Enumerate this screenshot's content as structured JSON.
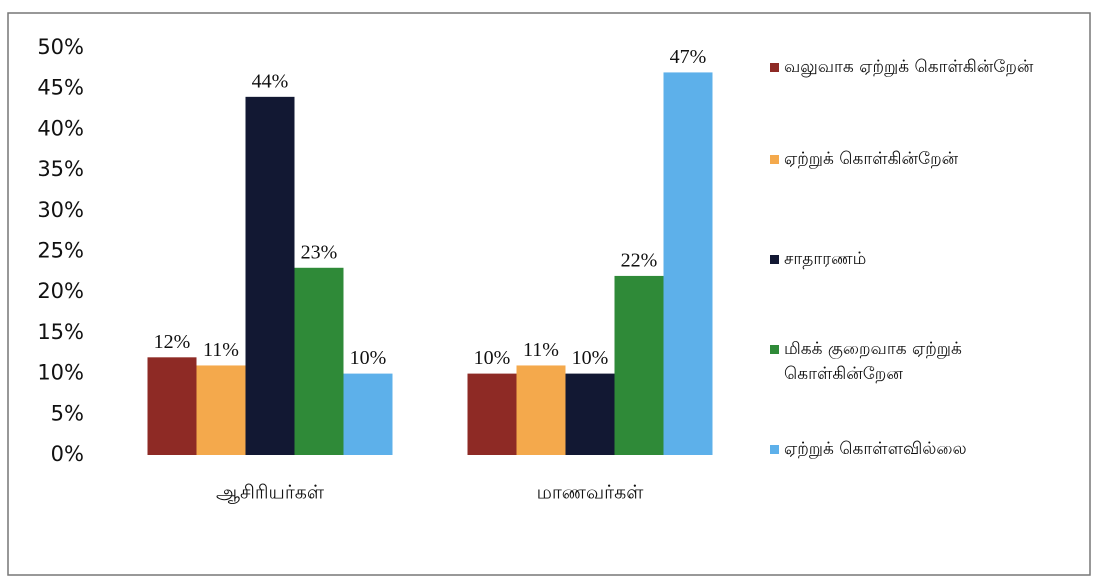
{
  "chart_data": {
    "type": "bar",
    "categories": [
      "ஆசிரியர்கள்",
      "மாணவர்கள்"
    ],
    "series": [
      {
        "name": "வலுவாக ஏற்றுக் கொள்கின்றேன்",
        "color": "#8e2a25",
        "values": [
          12,
          10
        ],
        "value_labels": [
          "12%",
          "10%"
        ]
      },
      {
        "name": "ஏற்றுக் கொள்கின்றேன்",
        "color": "#f4a94c",
        "values": [
          11,
          11
        ],
        "value_labels": [
          "11%",
          "11%"
        ]
      },
      {
        "name": "சாதாரணம்",
        "color": "#121833",
        "values": [
          44,
          10
        ],
        "value_labels": [
          "44%",
          "10%"
        ]
      },
      {
        "name": "மிகக் குறைவாக ஏற்றுக் கொள்கின்றேன",
        "color": "#2f8a38",
        "values": [
          23,
          22
        ],
        "value_labels": [
          "23%",
          "22%"
        ]
      },
      {
        "name": "ஏற்றுக் கொள்ளவில்லை",
        "color": "#5db0ea",
        "values": [
          10,
          47
        ],
        "value_labels": [
          "10%",
          "47%"
        ]
      }
    ],
    "ylim": [
      0,
      50
    ],
    "yticks": [
      {
        "value": 0,
        "label": "0%"
      },
      {
        "value": 5,
        "label": "5%"
      },
      {
        "value": 10,
        "label": "10%"
      },
      {
        "value": 15,
        "label": "15%"
      },
      {
        "value": 20,
        "label": "20%"
      },
      {
        "value": 25,
        "label": "25%"
      },
      {
        "value": 30,
        "label": "30%"
      },
      {
        "value": 35,
        "label": "35%"
      },
      {
        "value": 40,
        "label": "40%"
      },
      {
        "value": 45,
        "label": "45%"
      },
      {
        "value": 50,
        "label": "50%"
      }
    ],
    "legend": "right",
    "grid": false
  }
}
